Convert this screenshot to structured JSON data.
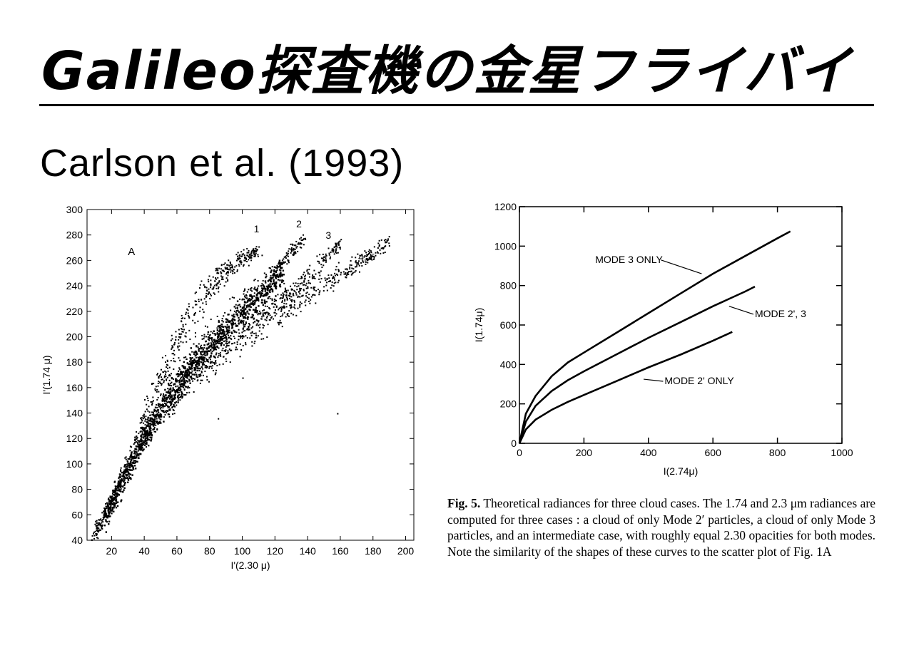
{
  "slide": {
    "title": "Galileo探査機の金星フライバイ",
    "subtitle": "Carlson et al. (1993)"
  },
  "chart_data": [
    {
      "type": "scatter",
      "panel_label": "A",
      "xlabel": "I'(2.30 μ)",
      "ylabel": "I'(1.74 μ)",
      "xlim": [
        5,
        205
      ],
      "ylim": [
        40,
        300
      ],
      "xticks": [
        20,
        40,
        60,
        80,
        100,
        120,
        140,
        160,
        180,
        200
      ],
      "yticks": [
        40,
        60,
        80,
        100,
        120,
        140,
        160,
        180,
        200,
        220,
        240,
        260,
        280,
        300
      ],
      "annotations": [
        {
          "text": "1",
          "x": 107,
          "y": 282
        },
        {
          "text": "2",
          "x": 133,
          "y": 286
        },
        {
          "text": "3",
          "x": 151,
          "y": 277
        },
        {
          "text": "4, 5",
          "x": 171,
          "y": 260
        }
      ],
      "branches": [
        {
          "name": "1",
          "points": [
            [
              8,
              42
            ],
            [
              20,
              70
            ],
            [
              30,
              100
            ],
            [
              40,
              138
            ],
            [
              50,
              170
            ],
            [
              60,
              198
            ],
            [
              70,
              222
            ],
            [
              80,
              238
            ],
            [
              90,
              252
            ],
            [
              100,
              263
            ],
            [
              110,
              268
            ]
          ]
        },
        {
          "name": "2",
          "points": [
            [
              10,
              48
            ],
            [
              25,
              88
            ],
            [
              40,
              128
            ],
            [
              55,
              160
            ],
            [
              70,
              186
            ],
            [
              85,
              206
            ],
            [
              100,
              225
            ],
            [
              115,
              245
            ],
            [
              130,
              268
            ],
            [
              138,
              278
            ]
          ]
        },
        {
          "name": "3",
          "points": [
            [
              10,
              46
            ],
            [
              30,
              100
            ],
            [
              50,
              142
            ],
            [
              70,
              172
            ],
            [
              90,
              197
            ],
            [
              110,
              215
            ],
            [
              130,
              235
            ],
            [
              145,
              255
            ],
            [
              155,
              268
            ],
            [
              160,
              275
            ]
          ]
        },
        {
          "name": "4, 5",
          "points": [
            [
              12,
              50
            ],
            [
              35,
              110
            ],
            [
              60,
              155
            ],
            [
              85,
              188
            ],
            [
              110,
              210
            ],
            [
              135,
              230
            ],
            [
              155,
              245
            ],
            [
              170,
              258
            ],
            [
              182,
              268
            ],
            [
              190,
              276
            ]
          ]
        }
      ],
      "outliers": [
        [
          158,
          140
        ],
        [
          100,
          168
        ],
        [
          85,
          136
        ]
      ]
    },
    {
      "type": "line",
      "xlabel": "I(2.74μ)",
      "ylabel": "I(1.74μ)",
      "xlim": [
        0,
        1000
      ],
      "ylim": [
        0,
        1200
      ],
      "xticks": [
        0,
        200,
        400,
        600,
        800,
        1000
      ],
      "yticks": [
        0,
        200,
        400,
        600,
        800,
        1000,
        1200
      ],
      "series": [
        {
          "name": "MODE 3 ONLY",
          "x": [
            0,
            20,
            50,
            100,
            150,
            200,
            300,
            400,
            500,
            600,
            700,
            800,
            840
          ],
          "y": [
            0,
            150,
            240,
            340,
            410,
            460,
            560,
            660,
            760,
            860,
            950,
            1040,
            1075
          ]
        },
        {
          "name": "MODE 2', 3",
          "x": [
            0,
            20,
            50,
            100,
            150,
            200,
            300,
            400,
            500,
            600,
            700,
            730
          ],
          "y": [
            0,
            110,
            190,
            265,
            320,
            365,
            450,
            535,
            615,
            695,
            770,
            795
          ]
        },
        {
          "name": "MODE 2' ONLY",
          "x": [
            0,
            20,
            50,
            100,
            150,
            200,
            300,
            400,
            500,
            600,
            660
          ],
          "y": [
            0,
            70,
            120,
            170,
            210,
            245,
            315,
            385,
            450,
            520,
            565
          ]
        }
      ],
      "labels": [
        {
          "text": "MODE 3 ONLY",
          "x": 235,
          "y": 915,
          "target": [
            565,
            860
          ]
        },
        {
          "text": "MODE 2', 3",
          "x": 730,
          "y": 640,
          "target": [
            650,
            695
          ]
        },
        {
          "text": "MODE 2' ONLY",
          "x": 450,
          "y": 300,
          "target": [
            385,
            325
          ]
        }
      ]
    }
  ],
  "caption": {
    "fig_label": "Fig. 5.",
    "text": " Theoretical radiances for three cloud cases. The 1.74 and 2.3 μm radiances are computed for three cases : a cloud of only Mode 2′ particles, a cloud of only Mode 3 particles, and an intermediate case, with roughly equal 2.30 opacities for both modes. Note the similarity of the shapes of these curves to the scatter plot of Fig. 1A"
  }
}
